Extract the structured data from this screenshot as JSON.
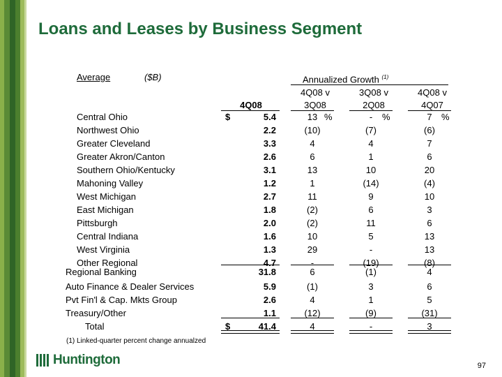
{
  "title": "Loans and Leases by Business Segment",
  "header": {
    "average": "Average",
    "units": "($B)",
    "growth": "Annualized Growth",
    "growth_sup": "(1)",
    "col1_top": "",
    "col1_bottom": "4Q08",
    "col2_top": "4Q08 v",
    "col2_bottom": "3Q08",
    "col3_top": "3Q08 v",
    "col3_bottom": "2Q08",
    "col4_top": "4Q08 v",
    "col4_bottom": "4Q07"
  },
  "rows": [
    {
      "label": "Central Ohio",
      "dollar": "$",
      "v": "5.4",
      "g1": "13",
      "g1p": "%",
      "g2": "-",
      "g2p": "%",
      "g3": "7",
      "g3p": "%"
    },
    {
      "label": "Northwest Ohio",
      "v": "2.2",
      "g1": "(10)",
      "g2": "(7)",
      "g3": "(6)"
    },
    {
      "label": "Greater Cleveland",
      "v": "3.3",
      "g1": "4",
      "g2": "4",
      "g3": "7"
    },
    {
      "label": "Greater Akron/Canton",
      "v": "2.6",
      "g1": "6",
      "g2": "1",
      "g3": "6"
    },
    {
      "label": "Southern Ohio/Kentucky",
      "v": "3.1",
      "g1": "13",
      "g2": "10",
      "g3": "20"
    },
    {
      "label": "Mahoning Valley",
      "v": "1.2",
      "g1": "1",
      "g2": "(14)",
      "g3": "(4)"
    },
    {
      "label": "West Michigan",
      "v": "2.7",
      "g1": "11",
      "g2": "9",
      "g3": "10"
    },
    {
      "label": "East Michigan",
      "v": "1.8",
      "g1": "(2)",
      "g2": "6",
      "g3": "3"
    },
    {
      "label": "Pittsburgh",
      "v": "2.0",
      "g1": "(2)",
      "g2": "11",
      "g3": "6"
    },
    {
      "label": "Central Indiana",
      "v": "1.6",
      "g1": "10",
      "g2": "5",
      "g3": "13"
    },
    {
      "label": "West Virginia",
      "v": "1.3",
      "g1": "29",
      "g2": "-",
      "g3": "13"
    },
    {
      "label": "Other Regional",
      "v": "4.7",
      "g1": "-",
      "g2": "(19)",
      "g3": "(8)"
    },
    {
      "label": "Regional Banking",
      "v": "31.8",
      "g1": "6",
      "g2": "(1)",
      "g3": "4"
    },
    {
      "label": "Auto Finance & Dealer Services",
      "v": "5.9",
      "g1": "(1)",
      "g2": "3",
      "g3": "6"
    },
    {
      "label": "Pvt Fin'l & Cap. Mkts Group",
      "v": "2.6",
      "g1": "4",
      "g2": "1",
      "g3": "5"
    },
    {
      "label": "Treasury/Other",
      "v": "1.1",
      "g1": "(12)",
      "g2": "(9)",
      "g3": "(31)"
    },
    {
      "label": "Total",
      "dollar": "$",
      "v": "41.4",
      "g1": "4",
      "g2": "-",
      "g3": "3"
    }
  ],
  "footnote": "(1)  Linked-quarter percent change annualzed",
  "logo": {
    "name": "Huntington",
    "icon": "huntington-logo-icon"
  },
  "page_number": "97",
  "colors": {
    "title_green": "#1e6b3a",
    "sidebar_dark": "#1c4a22",
    "sidebar_mid": "#3e7a2e",
    "sidebar_light": "#8ab04a",
    "sidebar_pale": "#b9cf86"
  }
}
